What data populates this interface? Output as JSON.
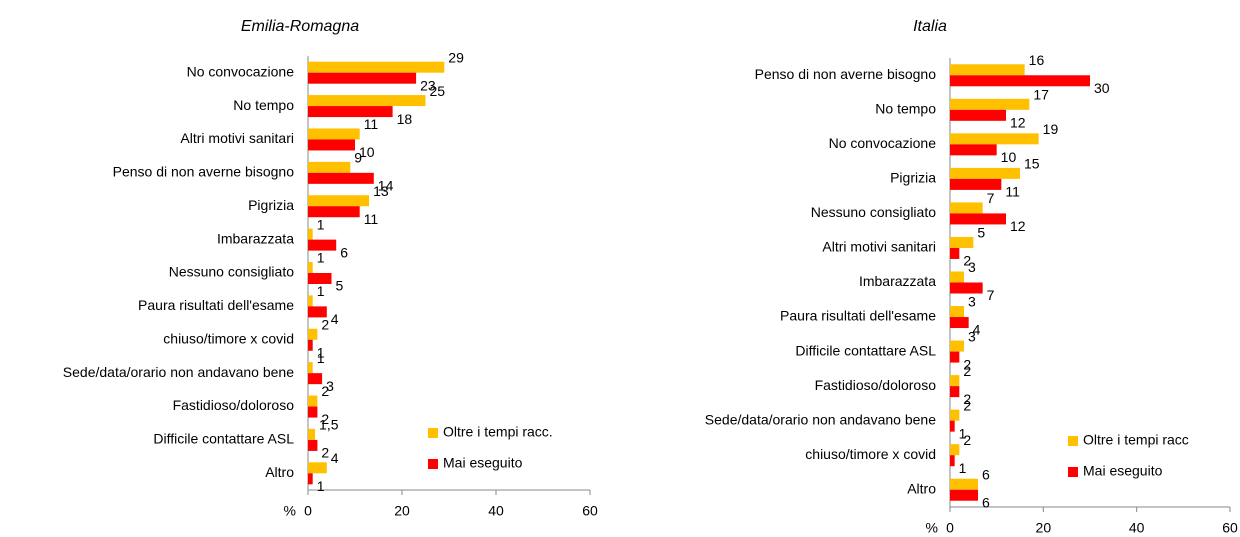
{
  "chart_data": [
    {
      "type": "bar",
      "orientation": "horizontal",
      "title": "Emilia-Romagna",
      "x_label": "%",
      "categories": [
        "No convocazione",
        "No tempo",
        "Altri motivi sanitari",
        "Penso di non averne bisogno",
        "Pigrizia",
        "Imbarazzata",
        "Nessuno consigliato",
        "Paura risultati dell'esame",
        "chiuso/timore x covid",
        "Sede/data/orario non andavano bene",
        "Fastidioso/doloroso",
        "Difficile contattare ASL",
        "Altro"
      ],
      "series": [
        {
          "name": "Oltre i tempi racc.",
          "color": "#ffc000",
          "values": [
            29,
            25,
            11,
            9,
            13,
            1,
            1,
            1,
            2,
            1,
            2,
            1.5,
            4
          ],
          "value_labels": [
            "29",
            "25",
            "11",
            "9",
            "13",
            "1",
            "1",
            "1",
            "2",
            "1",
            "2",
            "1,5",
            "4"
          ]
        },
        {
          "name": "Mai eseguito",
          "color": "#ff0000",
          "values": [
            23,
            18,
            10,
            14,
            11,
            6,
            5,
            4,
            1,
            3,
            2,
            2,
            1
          ]
        }
      ],
      "xlim": [
        0,
        60
      ],
      "xticks": [
        0,
        20,
        40,
        60
      ],
      "legend": "lower right"
    },
    {
      "type": "bar",
      "orientation": "horizontal",
      "title": "Italia",
      "x_label": "%",
      "categories": [
        "Penso di non averne bisogno",
        "No tempo",
        "No convocazione",
        "Pigrizia",
        "Nessuno consigliato",
        "Altri motivi sanitari",
        "Imbarazzata",
        "Paura risultati dell'esame",
        "Difficile contattare ASL",
        "Fastidioso/doloroso",
        "Sede/data/orario non andavano bene",
        "chiuso/timore x covid",
        "Altro"
      ],
      "series": [
        {
          "name": "Oltre i tempi racc",
          "color": "#ffc000",
          "values": [
            16,
            17,
            19,
            15,
            7,
            5,
            3,
            3,
            3,
            2,
            2,
            2,
            6
          ]
        },
        {
          "name": "Mai eseguito",
          "color": "#ff0000",
          "values": [
            30,
            12,
            10,
            11,
            12,
            2,
            7,
            4,
            2,
            2,
            1,
            1,
            6
          ]
        }
      ],
      "xlim": [
        0,
        60
      ],
      "xticks": [
        0,
        20,
        40,
        60
      ],
      "legend": "lower right"
    }
  ]
}
